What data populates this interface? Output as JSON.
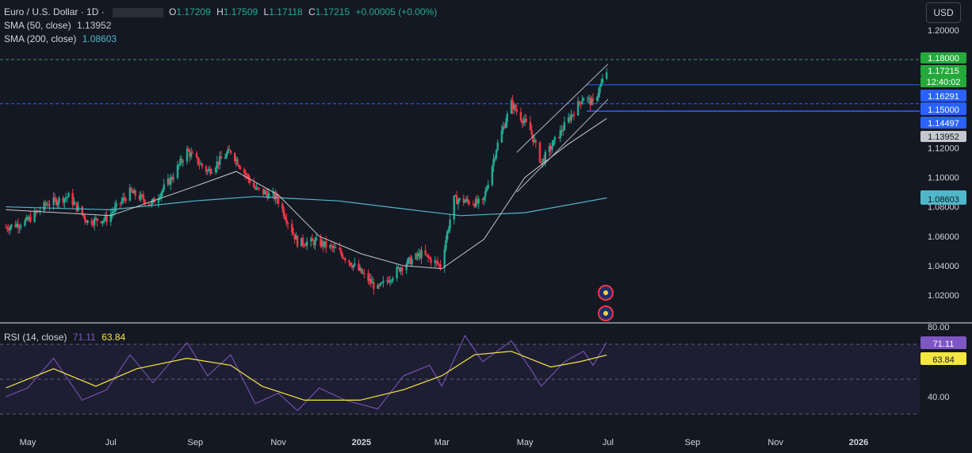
{
  "symbol": {
    "name": "Euro / U.S. Dollar · 1D ·",
    "o_label": "O",
    "o": "1.17209",
    "h_label": "H",
    "h": "1.17509",
    "l_label": "L",
    "l": "1.17118",
    "c_label": "C",
    "c": "1.17215",
    "change": "+0.00005 (+0.00%)"
  },
  "indicators": {
    "sma50": {
      "label": "SMA (50, close)",
      "value": "1.13952"
    },
    "sma200": {
      "label": "SMA (200, close)",
      "value": "1.08603"
    },
    "rsi": {
      "label": "RSI (14, close)",
      "value": "71.11",
      "ma_value": "63.84"
    }
  },
  "currency_button": "USD",
  "colors": {
    "background": "#141823",
    "up": "#22ab94",
    "down": "#f23645",
    "sma50": "#c8c8c8",
    "sma200": "#4fb8c8",
    "rsi": "#7e57c2",
    "rsi_ma": "#f5e642",
    "price_tag": "#26a93b",
    "blue_line": "#2962ff"
  },
  "price_labels": [
    {
      "text": "1.18000",
      "style": "green"
    },
    {
      "text": "1.17215",
      "style": "green"
    },
    {
      "text": "12:40:02",
      "style": "green"
    },
    {
      "text": "1.16291",
      "style": "blue"
    },
    {
      "text": "1.15000",
      "style": "blue"
    },
    {
      "text": "1.14497",
      "style": "blue"
    },
    {
      "text": "1.13952",
      "style": "gray"
    },
    {
      "text": "1.08603",
      "style": "cyan"
    },
    {
      "text": "71.11",
      "style": "purple"
    },
    {
      "text": "63.84",
      "style": "yellow"
    }
  ],
  "chart_data": [
    {
      "type": "candlestick",
      "title": "Euro / U.S. Dollar · 1D ·",
      "x_ticks": [
        "May",
        "Jul",
        "Sep",
        "Nov",
        "2025",
        "Mar",
        "May",
        "Jul",
        "Sep",
        "Nov",
        "2026"
      ],
      "y_ticks": [
        "1.20000",
        "1.18000",
        "1.12000",
        "1.10000",
        "1.08000",
        "1.06000",
        "1.04000",
        "1.02000"
      ],
      "ylim": [
        1.0,
        1.205
      ],
      "close_path": [
        [
          "2024-04-15",
          1.066
        ],
        [
          "2024-04-30",
          1.07
        ],
        [
          "2024-05-15",
          1.082
        ],
        [
          "2024-05-31",
          1.087
        ],
        [
          "2024-06-14",
          1.07
        ],
        [
          "2024-06-28",
          1.072
        ],
        [
          "2024-07-15",
          1.09
        ],
        [
          "2024-07-31",
          1.082
        ],
        [
          "2024-08-15",
          1.1
        ],
        [
          "2024-08-26",
          1.118
        ],
        [
          "2024-09-10",
          1.104
        ],
        [
          "2024-09-27",
          1.118
        ],
        [
          "2024-10-15",
          1.092
        ],
        [
          "2024-10-31",
          1.086
        ],
        [
          "2024-11-15",
          1.056
        ],
        [
          "2024-11-30",
          1.056
        ],
        [
          "2024-12-15",
          1.05
        ],
        [
          "2024-12-31",
          1.036
        ],
        [
          "2025-01-13",
          1.024
        ],
        [
          "2025-01-31",
          1.04
        ],
        [
          "2025-02-14",
          1.048
        ],
        [
          "2025-02-28",
          1.04
        ],
        [
          "2025-03-10",
          1.085
        ],
        [
          "2025-03-31",
          1.082
        ],
        [
          "2025-04-10",
          1.12
        ],
        [
          "2025-04-21",
          1.15
        ],
        [
          "2025-05-05",
          1.132
        ],
        [
          "2025-05-13",
          1.11
        ],
        [
          "2025-05-30",
          1.135
        ],
        [
          "2025-06-13",
          1.155
        ],
        [
          "2025-06-20",
          1.15
        ],
        [
          "2025-06-30",
          1.172
        ]
      ],
      "sma50_path": [
        [
          "2024-04-15",
          1.078
        ],
        [
          "2024-07-01",
          1.074
        ],
        [
          "2024-09-01",
          1.094
        ],
        [
          "2024-10-01",
          1.104
        ],
        [
          "2024-11-01",
          1.088
        ],
        [
          "2024-12-01",
          1.06
        ],
        [
          "2025-01-01",
          1.048
        ],
        [
          "2025-02-01",
          1.04
        ],
        [
          "2025-03-01",
          1.038
        ],
        [
          "2025-04-01",
          1.058
        ],
        [
          "2025-05-01",
          1.1
        ],
        [
          "2025-06-01",
          1.122
        ],
        [
          "2025-06-30",
          1.14
        ]
      ],
      "sma200_path": [
        [
          "2024-04-15",
          1.08
        ],
        [
          "2024-07-01",
          1.078
        ],
        [
          "2024-09-01",
          1.084
        ],
        [
          "2024-10-15",
          1.087
        ],
        [
          "2024-12-15",
          1.084
        ],
        [
          "2025-02-15",
          1.077
        ],
        [
          "2025-03-15",
          1.074
        ],
        [
          "2025-05-01",
          1.076
        ],
        [
          "2025-06-30",
          1.086
        ]
      ],
      "horizontal_levels": [
        1.18,
        1.16291,
        1.15,
        1.14497
      ],
      "channel_lines": [
        [
          [
            "2025-04-25",
            1.117
          ],
          [
            "2025-07-01",
            1.177
          ]
        ],
        [
          [
            "2025-04-25",
            1.09
          ],
          [
            "2025-07-01",
            1.153
          ]
        ]
      ],
      "series": [
        {
          "name": "SMA (50, close)",
          "last": 1.13952
        },
        {
          "name": "SMA (200, close)",
          "last": 1.08603
        }
      ]
    },
    {
      "type": "line",
      "title": "RSI (14, close)",
      "y_ticks": [
        "80.00",
        "40.00"
      ],
      "ylim": [
        30,
        82
      ],
      "bands": [
        70,
        50,
        30
      ],
      "rsi_path": [
        [
          "2024-04-15",
          40
        ],
        [
          "2024-05-01",
          45
        ],
        [
          "2024-05-20",
          62
        ],
        [
          "2024-06-10",
          38
        ],
        [
          "2024-06-28",
          44
        ],
        [
          "2024-07-15",
          64
        ],
        [
          "2024-08-01",
          48
        ],
        [
          "2024-08-26",
          71
        ],
        [
          "2024-09-10",
          52
        ],
        [
          "2024-09-27",
          64
        ],
        [
          "2024-10-15",
          36
        ],
        [
          "2024-11-01",
          42
        ],
        [
          "2024-11-15",
          32
        ],
        [
          "2024-12-01",
          45
        ],
        [
          "2024-12-20",
          38
        ],
        [
          "2025-01-13",
          33
        ],
        [
          "2025-02-01",
          52
        ],
        [
          "2025-02-20",
          58
        ],
        [
          "2025-03-01",
          46
        ],
        [
          "2025-03-18",
          75
        ],
        [
          "2025-03-31",
          60
        ],
        [
          "2025-04-21",
          72
        ],
        [
          "2025-05-05",
          56
        ],
        [
          "2025-05-13",
          46
        ],
        [
          "2025-05-30",
          60
        ],
        [
          "2025-06-13",
          66
        ],
        [
          "2025-06-20",
          58
        ],
        [
          "2025-06-30",
          71.11
        ]
      ],
      "rsi_ma_path": [
        [
          "2024-04-15",
          45
        ],
        [
          "2024-05-20",
          56
        ],
        [
          "2024-06-20",
          46
        ],
        [
          "2024-07-20",
          56
        ],
        [
          "2024-08-26",
          62
        ],
        [
          "2024-09-27",
          58
        ],
        [
          "2024-10-20",
          46
        ],
        [
          "2024-11-20",
          38
        ],
        [
          "2024-12-31",
          38
        ],
        [
          "2025-02-01",
          44
        ],
        [
          "2025-03-01",
          52
        ],
        [
          "2025-03-25",
          64
        ],
        [
          "2025-04-21",
          66
        ],
        [
          "2025-05-20",
          57
        ],
        [
          "2025-06-10",
          60
        ],
        [
          "2025-06-30",
          63.84
        ]
      ],
      "series": [
        {
          "name": "RSI (14, close)",
          "last": 71.11
        },
        {
          "name": "63.84",
          "last": 63.84
        }
      ]
    }
  ]
}
